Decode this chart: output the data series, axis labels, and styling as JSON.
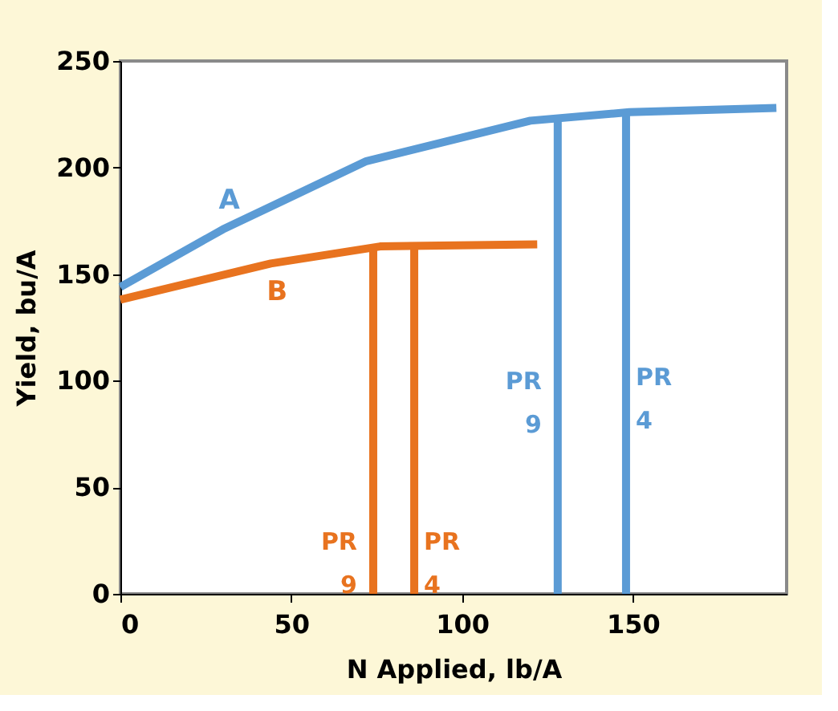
{
  "chart_data": {
    "type": "line",
    "xlabel": "N Applied, lb/A",
    "ylabel": "Yield, bu/A",
    "xlim": [
      0,
      195
    ],
    "ylim": [
      0,
      250
    ],
    "xticks": [
      0,
      50,
      100,
      150
    ],
    "yticks": [
      0,
      50,
      100,
      150,
      200,
      250
    ],
    "grid": false,
    "series": [
      {
        "name": "A",
        "color": "#5b9bd5",
        "x": [
          0,
          30,
          72,
          120,
          149,
          192
        ],
        "values": [
          144,
          171,
          203,
          222,
          226,
          228
        ]
      },
      {
        "name": "B",
        "color": "#e8731f",
        "x": [
          0,
          44,
          76,
          122
        ],
        "values": [
          138,
          155,
          163,
          164
        ]
      },
      {
        "color": "#e8731f",
        "x": [
          74,
          74
        ],
        "values": [
          0,
          163
        ]
      },
      {
        "color": "#e8731f",
        "x": [
          86,
          86
        ],
        "values": [
          0,
          163
        ]
      },
      {
        "color": "#5b9bd5",
        "x": [
          128,
          128
        ],
        "values": [
          0,
          222
        ]
      },
      {
        "color": "#5b9bd5",
        "x": [
          148,
          148
        ],
        "values": [
          0,
          226
        ]
      }
    ],
    "annotations": [
      "PR\n9",
      "PR\n4",
      "PR\n9",
      "PR\n4"
    ]
  }
}
